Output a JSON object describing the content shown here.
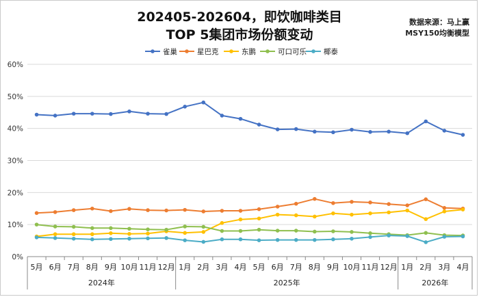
{
  "chart_data": {
    "type": "line",
    "title": "202405-202604，即饮咖啡类目",
    "subtitle": "TOP 5集团市场份额变动",
    "source_line1": "数据来源：马上赢",
    "source_line2": "MSY150均衡模型",
    "ylim": [
      0,
      60
    ],
    "y_ticks": [
      "0%",
      "10%",
      "20%",
      "30%",
      "40%",
      "50%",
      "60%"
    ],
    "grid": true,
    "legend_position": "top",
    "months": [
      "5月",
      "6月",
      "7月",
      "8月",
      "9月",
      "10月",
      "11月",
      "12月",
      "1月",
      "2月",
      "3月",
      "4月",
      "5月",
      "6月",
      "7月",
      "8月",
      "9月",
      "10月",
      "11月",
      "12月",
      "1月",
      "2月",
      "3月",
      "4月"
    ],
    "years": [
      {
        "label": "2024年",
        "span": 8
      },
      {
        "label": "2025年",
        "span": 12
      },
      {
        "label": "2026年",
        "span": 4
      }
    ],
    "series": [
      {
        "name": "雀巢",
        "color": "#4472c4",
        "values": [
          44.3,
          44.0,
          44.6,
          44.6,
          44.5,
          45.3,
          44.6,
          44.5,
          46.8,
          48.1,
          44.0,
          43.0,
          41.2,
          39.7,
          39.8,
          39.0,
          38.8,
          39.6,
          38.9,
          39.0,
          38.5,
          42.2,
          39.3,
          38.0
        ]
      },
      {
        "name": "星巴克",
        "color": "#ed7d31",
        "values": [
          13.6,
          13.9,
          14.5,
          15.0,
          14.2,
          14.9,
          14.5,
          14.4,
          14.6,
          14.1,
          14.3,
          14.3,
          14.8,
          15.6,
          16.5,
          18.0,
          16.7,
          17.1,
          16.9,
          16.4,
          16.0,
          17.9,
          15.2,
          15.0
        ]
      },
      {
        "name": "东鹏",
        "color": "#ffc000",
        "values": [
          6.3,
          7.0,
          7.0,
          7.0,
          7.3,
          7.1,
          7.2,
          7.9,
          7.4,
          7.7,
          10.5,
          11.6,
          11.9,
          13.1,
          12.9,
          12.5,
          13.5,
          13.1,
          13.5,
          13.8,
          14.4,
          11.7,
          14.1,
          14.7
        ]
      },
      {
        "name": "可口可乐",
        "color": "#8fbf4f",
        "values": [
          10.0,
          9.4,
          9.3,
          8.9,
          8.9,
          8.7,
          8.5,
          8.4,
          9.4,
          9.3,
          8.0,
          8.0,
          8.4,
          8.1,
          8.1,
          7.8,
          7.9,
          7.7,
          7.3,
          7.0,
          6.7,
          7.4,
          6.7,
          6.6
        ]
      },
      {
        "name": "椰泰",
        "color": "#4bacc6",
        "values": [
          6.0,
          5.8,
          5.6,
          5.4,
          5.5,
          5.6,
          5.7,
          5.8,
          5.1,
          4.6,
          5.4,
          5.4,
          5.1,
          5.2,
          5.2,
          5.2,
          5.4,
          5.6,
          6.1,
          6.6,
          6.4,
          4.5,
          6.2,
          6.3
        ]
      }
    ]
  }
}
